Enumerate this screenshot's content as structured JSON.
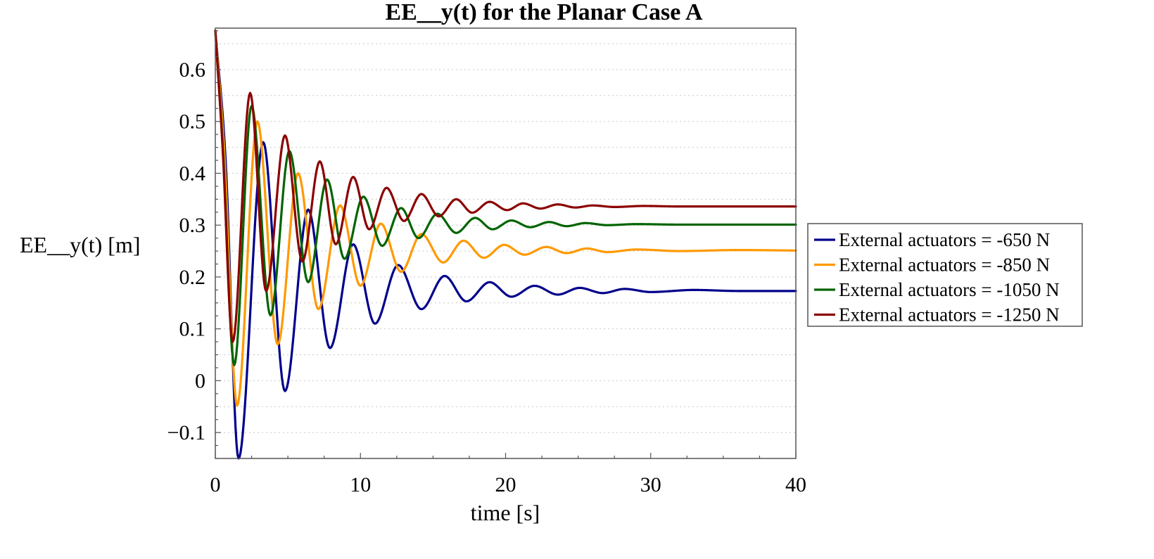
{
  "chart_data": {
    "type": "line",
    "title": "EE__y(t) for the Planar Case A",
    "xlabel": "time [s]",
    "ylabel": "EE__y(t) [m]",
    "xlim": [
      0,
      40
    ],
    "ylim": [
      -0.15,
      0.68
    ],
    "xticks": [
      0,
      10,
      20,
      30,
      40
    ],
    "xtick_labels": [
      "0",
      "10",
      "20",
      "30",
      "40"
    ],
    "yticks": [
      -0.1,
      0,
      0.1,
      0.2,
      0.3,
      0.4,
      0.5,
      0.6
    ],
    "ytick_labels": [
      "−0.1",
      "0",
      "0.1",
      "0.2",
      "0.3",
      "0.4",
      "0.5",
      "0.6"
    ],
    "grid": "horizontal-dotted",
    "legend_position": "right",
    "series": [
      {
        "name": "External actuators = -650 N",
        "color": "#00008b",
        "x": [
          0,
          0.7,
          1.6,
          3.3,
          4.8,
          6.4,
          7.9,
          9.5,
          11.0,
          12.6,
          14.2,
          15.8,
          17.3,
          18.9,
          20.4,
          22.0,
          23.6,
          25.1,
          26.7,
          28.2,
          30.0,
          33.0,
          36.0,
          40.0
        ],
        "y": [
          0.675,
          0.43,
          -0.15,
          0.46,
          -0.02,
          0.33,
          0.063,
          0.263,
          0.11,
          0.223,
          0.138,
          0.202,
          0.153,
          0.19,
          0.162,
          0.183,
          0.166,
          0.179,
          0.169,
          0.177,
          0.171,
          0.175,
          0.173,
          0.173
        ]
      },
      {
        "name": "External actuators = -850 N",
        "color": "#ff9900",
        "x": [
          0,
          0.6,
          1.5,
          2.9,
          4.3,
          5.7,
          7.1,
          8.6,
          10.0,
          11.4,
          12.8,
          14.2,
          15.7,
          17.1,
          18.5,
          19.9,
          21.3,
          22.8,
          24.2,
          25.6,
          27.0,
          29.0,
          32.0,
          36.0,
          40.0
        ],
        "y": [
          0.675,
          0.45,
          -0.048,
          0.5,
          0.07,
          0.4,
          0.138,
          0.338,
          0.183,
          0.303,
          0.21,
          0.283,
          0.228,
          0.27,
          0.237,
          0.262,
          0.243,
          0.258,
          0.246,
          0.255,
          0.248,
          0.253,
          0.25,
          0.252,
          0.251
        ]
      },
      {
        "name": "External actuators = -1050 N",
        "color": "#006400",
        "x": [
          0,
          0.5,
          1.3,
          2.5,
          3.8,
          5.1,
          6.4,
          7.7,
          8.9,
          10.2,
          11.5,
          12.8,
          14.0,
          15.3,
          16.6,
          17.9,
          19.1,
          20.4,
          21.7,
          23.0,
          24.2,
          25.5,
          27.0,
          29.0,
          32.0,
          36.0,
          40.0
        ],
        "y": [
          0.675,
          0.46,
          0.03,
          0.53,
          0.126,
          0.443,
          0.19,
          0.388,
          0.235,
          0.355,
          0.26,
          0.333,
          0.275,
          0.322,
          0.285,
          0.314,
          0.292,
          0.309,
          0.296,
          0.306,
          0.298,
          0.304,
          0.3,
          0.302,
          0.301,
          0.301,
          0.301
        ]
      },
      {
        "name": "External actuators = -1250 N",
        "color": "#8b0000",
        "x": [
          0,
          0.5,
          1.2,
          2.4,
          3.5,
          4.8,
          6.0,
          7.2,
          8.3,
          9.5,
          10.6,
          11.8,
          13.0,
          14.2,
          15.4,
          16.6,
          17.7,
          18.9,
          20.1,
          21.2,
          22.4,
          23.6,
          24.8,
          26.0,
          27.5,
          29.5,
          32.0,
          36.0,
          40.0
        ],
        "y": [
          0.675,
          0.45,
          0.075,
          0.555,
          0.173,
          0.473,
          0.23,
          0.423,
          0.263,
          0.393,
          0.292,
          0.372,
          0.308,
          0.36,
          0.317,
          0.35,
          0.324,
          0.345,
          0.329,
          0.342,
          0.332,
          0.34,
          0.334,
          0.338,
          0.335,
          0.337,
          0.336,
          0.336,
          0.336
        ]
      }
    ]
  }
}
